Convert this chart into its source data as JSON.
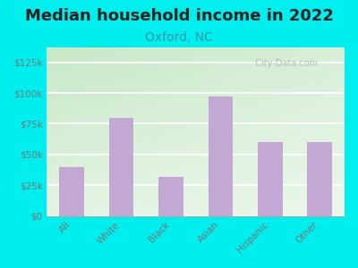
{
  "title": "Median household income in 2022",
  "subtitle": "Oxford, NC",
  "categories": [
    "All",
    "White",
    "Black",
    "Asian",
    "Hispanic",
    "Other"
  ],
  "values": [
    40000,
    80000,
    32000,
    97000,
    60000,
    60000
  ],
  "bar_color": "#c4a8d4",
  "title_fontsize": 13,
  "subtitle_fontsize": 10,
  "subtitle_color": "#3399aa",
  "title_color": "#222222",
  "background_color": "#00eeee",
  "plot_bg_left": "#b8ddb8",
  "plot_bg_right": "#f0fff0",
  "yticks": [
    0,
    25000,
    50000,
    75000,
    100000,
    125000
  ],
  "ylim": [
    0,
    137500
  ],
  "watermark": "  City-Data.com",
  "grid_color": "#dddddd",
  "tick_color": "#777777"
}
